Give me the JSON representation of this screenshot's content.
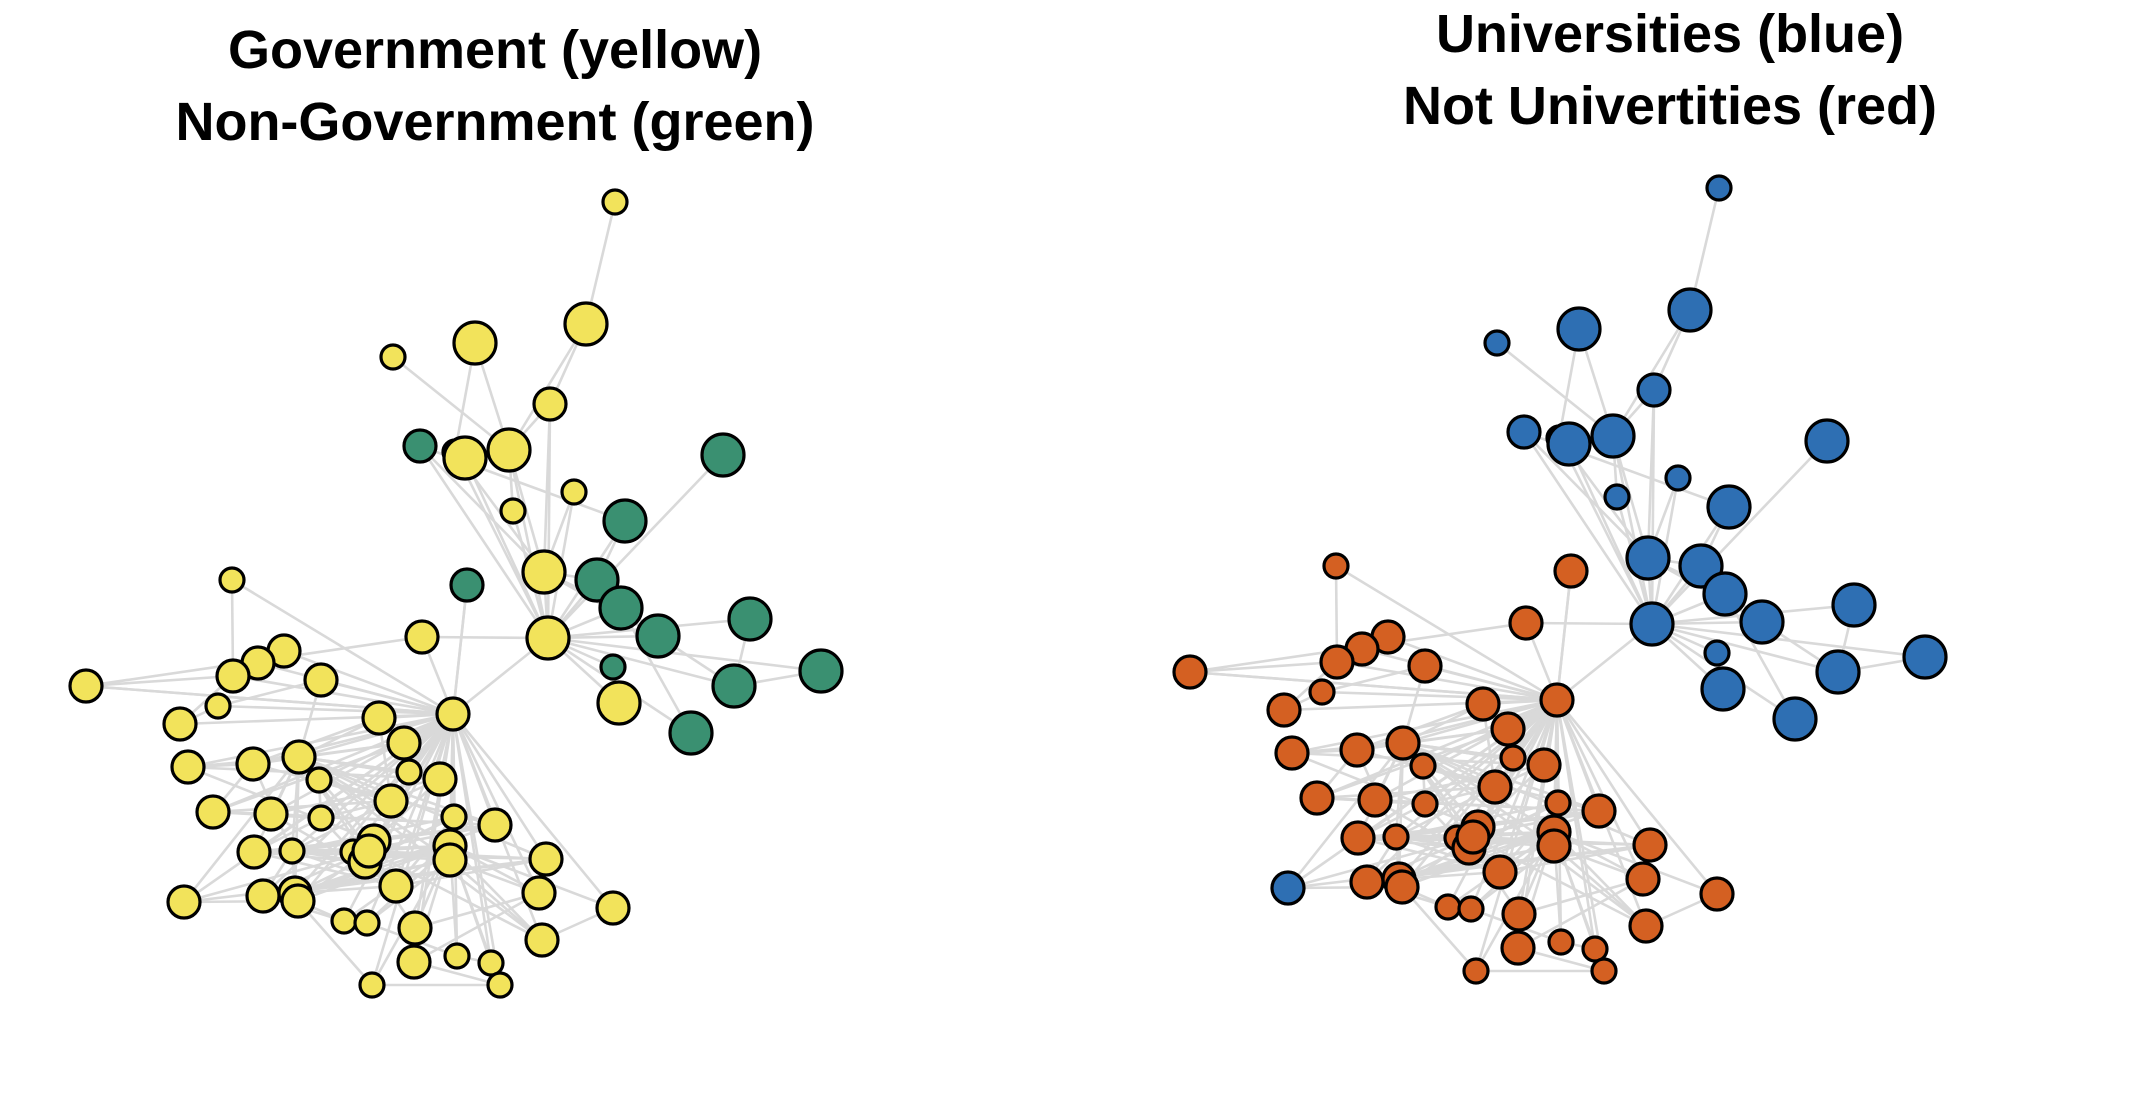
{
  "panels": [
    {
      "id": "left",
      "title_line1": "Government (yellow)",
      "title_line2": "Non-Government (green)",
      "attribute_name": "sector",
      "attribute_values": [
        "Government",
        "Non-Government"
      ]
    },
    {
      "id": "right",
      "title_line1": "Universities (blue)",
      "title_line2": "Not Univertities (red)",
      "attribute_name": "type",
      "attribute_values": [
        "University",
        "Not University"
      ]
    }
  ],
  "colors": {
    "yellow": "#f2e35b",
    "green": "#3a9071",
    "blue": "#2e6fb3",
    "red": "#d46022",
    "edge": "#d9d9d9",
    "outline": "#000000"
  },
  "network": {
    "nodes": [
      {
        "id": 1,
        "size": "small",
        "gov": true,
        "univ": true
      },
      {
        "id": 2,
        "size": "large",
        "gov": true,
        "univ": true
      },
      {
        "id": 3,
        "size": "large",
        "gov": true,
        "univ": true
      },
      {
        "id": 4,
        "size": "small",
        "gov": true,
        "univ": true
      },
      {
        "id": 5,
        "size": "medium",
        "gov": true,
        "univ": true
      },
      {
        "id": 6,
        "size": "medium",
        "gov": false,
        "univ": true
      },
      {
        "id": 7,
        "size": "small",
        "gov": true,
        "univ": true
      },
      {
        "id": 8,
        "size": "large",
        "gov": true,
        "univ": true
      },
      {
        "id": 9,
        "size": "large",
        "gov": false,
        "univ": true
      },
      {
        "id": 10,
        "size": "small",
        "gov": true,
        "univ": true
      },
      {
        "id": 11,
        "size": "small",
        "gov": true,
        "univ": true
      },
      {
        "id": 12,
        "size": "large",
        "gov": false,
        "univ": true
      },
      {
        "id": 13,
        "size": "large",
        "gov": true,
        "univ": true
      },
      {
        "id": 14,
        "size": "large",
        "gov": false,
        "univ": true
      },
      {
        "id": 15,
        "size": "large",
        "gov": false,
        "univ": true
      },
      {
        "id": 16,
        "size": "large",
        "gov": false,
        "univ": true
      },
      {
        "id": 17,
        "size": "large",
        "gov": true,
        "univ": true
      },
      {
        "id": 18,
        "size": "large",
        "gov": false,
        "univ": true
      },
      {
        "id": 19,
        "size": "large",
        "gov": false,
        "univ": true
      },
      {
        "id": 20,
        "size": "large",
        "gov": false,
        "univ": true
      },
      {
        "id": 21,
        "size": "small",
        "gov": false,
        "univ": true
      },
      {
        "id": 22,
        "size": "large",
        "gov": false,
        "univ": true
      },
      {
        "id": 23,
        "size": "large",
        "gov": true,
        "univ": true
      },
      {
        "id": 24,
        "size": "large",
        "gov": true,
        "univ": true
      },
      {
        "id": 25,
        "size": "medium",
        "gov": false,
        "univ": false
      },
      {
        "id": 26,
        "size": "small",
        "gov": true,
        "univ": false
      },
      {
        "id": 27,
        "size": "medium",
        "gov": true,
        "univ": false
      },
      {
        "id": 28,
        "size": "medium",
        "gov": true,
        "univ": false
      },
      {
        "id": 29,
        "size": "medium",
        "gov": true,
        "univ": false
      },
      {
        "id": 30,
        "size": "medium",
        "gov": true,
        "univ": false
      },
      {
        "id": 31,
        "size": "medium",
        "gov": true,
        "univ": false
      },
      {
        "id": 32,
        "size": "medium",
        "gov": true,
        "univ": false
      },
      {
        "id": 33,
        "size": "medium",
        "gov": true,
        "univ": false
      },
      {
        "id": 34,
        "size": "small",
        "gov": true,
        "univ": false
      },
      {
        "id": 35,
        "size": "medium",
        "gov": true,
        "univ": false
      },
      {
        "id": 36,
        "size": "medium",
        "gov": true,
        "univ": false
      },
      {
        "id": 37,
        "size": "medium",
        "gov": true,
        "univ": false
      },
      {
        "id": 38,
        "size": "medium",
        "gov": true,
        "univ": false
      },
      {
        "id": 39,
        "size": "medium",
        "gov": true,
        "univ": false
      },
      {
        "id": 40,
        "size": "small",
        "gov": true,
        "univ": false
      },
      {
        "id": 41,
        "size": "medium",
        "gov": true,
        "univ": false
      },
      {
        "id": 42,
        "size": "medium",
        "gov": true,
        "univ": false
      },
      {
        "id": 43,
        "size": "small",
        "gov": true,
        "univ": false
      },
      {
        "id": 44,
        "size": "medium",
        "gov": true,
        "univ": false
      },
      {
        "id": 45,
        "size": "medium",
        "gov": true,
        "univ": false
      },
      {
        "id": 46,
        "size": "small",
        "gov": true,
        "univ": false
      },
      {
        "id": 47,
        "size": "medium",
        "gov": true,
        "univ": false
      },
      {
        "id": 48,
        "size": "medium",
        "gov": true,
        "univ": false
      },
      {
        "id": 49,
        "size": "small",
        "gov": true,
        "univ": false
      },
      {
        "id": 50,
        "size": "medium",
        "gov": true,
        "univ": false
      },
      {
        "id": 51,
        "size": "small",
        "gov": true,
        "univ": false
      },
      {
        "id": 52,
        "size": "medium",
        "gov": true,
        "univ": false
      },
      {
        "id": 53,
        "size": "medium",
        "gov": true,
        "univ": false
      },
      {
        "id": 54,
        "size": "medium",
        "gov": true,
        "univ": false
      },
      {
        "id": 55,
        "size": "small",
        "gov": true,
        "univ": false
      },
      {
        "id": 56,
        "size": "medium",
        "gov": true,
        "univ": false
      },
      {
        "id": 57,
        "size": "medium",
        "gov": true,
        "univ": false
      },
      {
        "id": 58,
        "size": "medium",
        "gov": true,
        "univ": true
      },
      {
        "id": 59,
        "size": "medium",
        "gov": true,
        "univ": false
      },
      {
        "id": 60,
        "size": "medium",
        "gov": true,
        "univ": false
      },
      {
        "id": 61,
        "size": "medium",
        "gov": true,
        "univ": false
      },
      {
        "id": 62,
        "size": "small",
        "gov": true,
        "univ": false
      },
      {
        "id": 63,
        "size": "medium",
        "gov": true,
        "univ": false
      },
      {
        "id": 64,
        "size": "medium",
        "gov": true,
        "univ": false
      },
      {
        "id": 65,
        "size": "small",
        "gov": true,
        "univ": false
      },
      {
        "id": 66,
        "size": "medium",
        "gov": true,
        "univ": false
      },
      {
        "id": 67,
        "size": "medium",
        "gov": true,
        "univ": false
      },
      {
        "id": 68,
        "size": "small",
        "gov": true,
        "univ": false
      },
      {
        "id": 69,
        "size": "small",
        "gov": true,
        "univ": false
      },
      {
        "id": 70,
        "size": "medium",
        "gov": true,
        "univ": false
      },
      {
        "id": 71,
        "size": "small",
        "gov": true,
        "univ": false
      },
      {
        "id": 72,
        "size": "small",
        "gov": true,
        "univ": false
      },
      {
        "id": 73,
        "size": "medium",
        "gov": true,
        "univ": false
      },
      {
        "id": 74,
        "size": "medium",
        "gov": true,
        "univ": false
      }
    ],
    "edges": [
      [
        1,
        3
      ],
      [
        3,
        8
      ],
      [
        3,
        5
      ],
      [
        2,
        7
      ],
      [
        2,
        8
      ],
      [
        4,
        8
      ],
      [
        5,
        8
      ],
      [
        5,
        13
      ],
      [
        5,
        17
      ],
      [
        8,
        13
      ],
      [
        8,
        17
      ],
      [
        8,
        11
      ],
      [
        7,
        13
      ],
      [
        7,
        17
      ],
      [
        6,
        13
      ],
      [
        6,
        17
      ],
      [
        6,
        12
      ],
      [
        10,
        13
      ],
      [
        10,
        17
      ],
      [
        11,
        17
      ],
      [
        9,
        17
      ],
      [
        12,
        17
      ],
      [
        12,
        14
      ],
      [
        14,
        17
      ],
      [
        15,
        17
      ],
      [
        16,
        17
      ],
      [
        17,
        18
      ],
      [
        17,
        19
      ],
      [
        17,
        20
      ],
      [
        17,
        21
      ],
      [
        17,
        22
      ],
      [
        17,
        23
      ],
      [
        17,
        24
      ],
      [
        13,
        17
      ],
      [
        13,
        14
      ],
      [
        13,
        15
      ],
      [
        14,
        15
      ],
      [
        16,
        19
      ],
      [
        19,
        20
      ],
      [
        17,
        33
      ],
      [
        13,
        16
      ],
      [
        14,
        16
      ],
      [
        15,
        22
      ],
      [
        19,
        18
      ],
      [
        33,
        25
      ],
      [
        33,
        26
      ],
      [
        33,
        27
      ],
      [
        33,
        28
      ],
      [
        33,
        29
      ],
      [
        33,
        30
      ],
      [
        33,
        31
      ],
      [
        33,
        32
      ],
      [
        33,
        34
      ],
      [
        33,
        35
      ],
      [
        33,
        36
      ],
      [
        33,
        37
      ],
      [
        33,
        38
      ],
      [
        33,
        39
      ],
      [
        33,
        40
      ],
      [
        33,
        41
      ],
      [
        33,
        42
      ],
      [
        33,
        43
      ],
      [
        33,
        44
      ],
      [
        33,
        45
      ],
      [
        33,
        46
      ],
      [
        33,
        47
      ],
      [
        33,
        48
      ],
      [
        33,
        49
      ],
      [
        33,
        50
      ],
      [
        33,
        51
      ],
      [
        33,
        52
      ],
      [
        33,
        53
      ],
      [
        33,
        54
      ],
      [
        33,
        55
      ],
      [
        33,
        56
      ],
      [
        33,
        57
      ],
      [
        33,
        58
      ],
      [
        33,
        59
      ],
      [
        33,
        60
      ],
      [
        33,
        61
      ],
      [
        33,
        62
      ],
      [
        33,
        63
      ],
      [
        33,
        64
      ],
      [
        33,
        65
      ],
      [
        33,
        66
      ],
      [
        33,
        67
      ],
      [
        33,
        68
      ],
      [
        33,
        69
      ],
      [
        33,
        70
      ],
      [
        33,
        71
      ],
      [
        33,
        72
      ],
      [
        33,
        73
      ],
      [
        33,
        74
      ],
      [
        38,
        41
      ],
      [
        38,
        43
      ],
      [
        38,
        44
      ],
      [
        38,
        47
      ],
      [
        38,
        48
      ],
      [
        38,
        50
      ],
      [
        38,
        52
      ],
      [
        38,
        54
      ],
      [
        38,
        56
      ],
      [
        38,
        57
      ],
      [
        38,
        58
      ],
      [
        38,
        59
      ],
      [
        38,
        64
      ],
      [
        38,
        66
      ],
      [
        38,
        73
      ],
      [
        38,
        39
      ],
      [
        38,
        40
      ],
      [
        38,
        42
      ],
      [
        51,
        52
      ],
      [
        51,
        53
      ],
      [
        51,
        54
      ],
      [
        51,
        55
      ],
      [
        51,
        57
      ],
      [
        51,
        59
      ],
      [
        51,
        60
      ],
      [
        51,
        63
      ],
      [
        63,
        64
      ],
      [
        63,
        65
      ],
      [
        63,
        66
      ],
      [
        63,
        67
      ],
      [
        63,
        68
      ],
      [
        63,
        69
      ],
      [
        63,
        70
      ],
      [
        63,
        71
      ],
      [
        63,
        73
      ],
      [
        63,
        74
      ],
      [
        41,
        42
      ],
      [
        41,
        45
      ],
      [
        42,
        43
      ],
      [
        42,
        44
      ],
      [
        42,
        45
      ],
      [
        42,
        46
      ],
      [
        45,
        46
      ],
      [
        45,
        47
      ],
      [
        44,
        47
      ],
      [
        44,
        48
      ],
      [
        47,
        50
      ],
      [
        48,
        50
      ],
      [
        48,
        49
      ],
      [
        49,
        50
      ],
      [
        50,
        52
      ],
      [
        52,
        54
      ],
      [
        52,
        53
      ],
      [
        53,
        54
      ],
      [
        54,
        55
      ],
      [
        55,
        57
      ],
      [
        54,
        57
      ],
      [
        54,
        56
      ],
      [
        56,
        58
      ],
      [
        56,
        59
      ],
      [
        58,
        59
      ],
      [
        59,
        60
      ],
      [
        59,
        61
      ],
      [
        60,
        62
      ],
      [
        60,
        61
      ],
      [
        61,
        62
      ],
      [
        63,
        59
      ],
      [
        61,
        63
      ],
      [
        61,
        72
      ],
      [
        57,
        63
      ],
      [
        57,
        60
      ],
      [
        36,
        38
      ],
      [
        37,
        38
      ],
      [
        36,
        37
      ],
      [
        53,
        63
      ],
      [
        35,
        38
      ],
      [
        35,
        34
      ],
      [
        34,
        32
      ],
      [
        32,
        30
      ],
      [
        30,
        29
      ],
      [
        29,
        31
      ],
      [
        39,
        44
      ],
      [
        39,
        48
      ],
      [
        40,
        44
      ],
      [
        43,
        46
      ],
      [
        46,
        49
      ],
      [
        49,
        53
      ],
      [
        53,
        55
      ],
      [
        56,
        60
      ],
      [
        58,
        61
      ],
      [
        62,
        63
      ],
      [
        66,
        67
      ],
      [
        67,
        70
      ],
      [
        70,
        71
      ],
      [
        71,
        72
      ],
      [
        73,
        74
      ],
      [
        64,
        73
      ],
      [
        64,
        67
      ],
      [
        64,
        65
      ],
      [
        65,
        68
      ],
      [
        68,
        69
      ],
      [
        63,
        72
      ],
      [
        63,
        38
      ],
      [
        51,
        38
      ],
      [
        51,
        50
      ],
      [
        51,
        64
      ],
      [
        53,
        59
      ],
      [
        55,
        63
      ],
      [
        57,
        64
      ],
      [
        59,
        73
      ],
      [
        60,
        64
      ],
      [
        50,
        57
      ],
      [
        47,
        54
      ],
      [
        45,
        50
      ],
      [
        43,
        50
      ],
      [
        41,
        51
      ],
      [
        42,
        51
      ],
      [
        46,
        52
      ],
      [
        48,
        52
      ],
      [
        49,
        56
      ],
      [
        52,
        56
      ],
      [
        44,
        38
      ],
      [
        40,
        38
      ],
      [
        39,
        41
      ],
      [
        36,
        41
      ],
      [
        37,
        41
      ],
      [
        36,
        42
      ],
      [
        37,
        45
      ],
      [
        26,
        30
      ],
      [
        27,
        30
      ],
      [
        28,
        30
      ],
      [
        27,
        28
      ],
      [
        25,
        33
      ],
      [
        31,
        17
      ],
      [
        29,
        33
      ]
    ]
  }
}
